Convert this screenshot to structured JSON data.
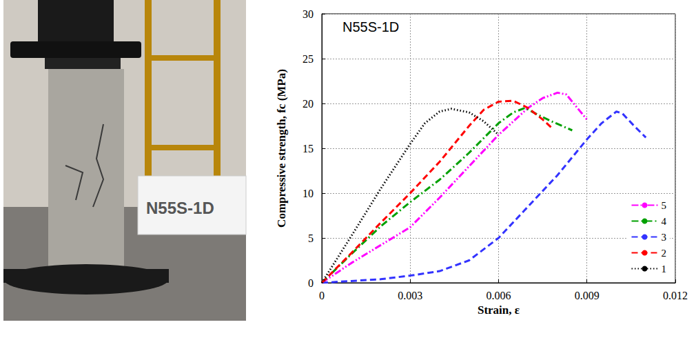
{
  "photo": {
    "label": "N55S-1D"
  },
  "chart_data": {
    "type": "line",
    "title": "N55S-1D",
    "x_label": "Strain, ε",
    "y_label": "Compressive strength, fc (MPa)",
    "xlim": [
      0,
      0.012
    ],
    "xticks": [
      0,
      0.003,
      0.006,
      0.009,
      0.012
    ],
    "ylim": [
      0,
      30
    ],
    "yticks": [
      0,
      5,
      10,
      15,
      20,
      25,
      30
    ],
    "grid": true,
    "legend": "lower right",
    "series": [
      {
        "name": "5",
        "color": "#ff00ff",
        "line_style": "dashdotdot",
        "x": [
          0,
          0.001,
          0.002,
          0.003,
          0.004,
          0.005,
          0.006,
          0.007,
          0.0075,
          0.008,
          0.0083,
          0.0086,
          0.009
        ],
        "values": [
          0,
          2.2,
          4.2,
          6.2,
          9.5,
          13.0,
          16.5,
          19.5,
          20.6,
          21.2,
          21.0,
          19.8,
          18.2
        ]
      },
      {
        "name": "4",
        "color": "#00a000",
        "line_style": "dashdot",
        "x": [
          0,
          0.001,
          0.002,
          0.003,
          0.004,
          0.005,
          0.006,
          0.0065,
          0.0069,
          0.0073,
          0.0078,
          0.0085
        ],
        "values": [
          0,
          3.2,
          6.3,
          9.0,
          11.5,
          14.5,
          17.8,
          19.0,
          19.5,
          18.8,
          18.0,
          17.0
        ]
      },
      {
        "name": "3",
        "color": "#3333ff",
        "line_style": "dashed",
        "x": [
          0,
          0.001,
          0.002,
          0.003,
          0.004,
          0.005,
          0.006,
          0.007,
          0.008,
          0.009,
          0.0095,
          0.01,
          0.0102,
          0.0106,
          0.011
        ],
        "values": [
          0,
          0.2,
          0.4,
          0.8,
          1.3,
          2.5,
          5.0,
          8.5,
          12.0,
          16.0,
          17.8,
          19.1,
          18.9,
          17.5,
          16.2
        ]
      },
      {
        "name": "2",
        "color": "#ff0000",
        "line_style": "dashed",
        "x": [
          0,
          0.001,
          0.002,
          0.003,
          0.004,
          0.005,
          0.0055,
          0.006,
          0.0065,
          0.007,
          0.0075,
          0.0078
        ],
        "values": [
          0,
          3.3,
          6.7,
          10.0,
          13.5,
          17.5,
          19.3,
          20.2,
          20.3,
          19.5,
          18.2,
          17.3
        ]
      },
      {
        "name": "1",
        "color": "#000000",
        "line_style": "dotted",
        "x": [
          0,
          0.001,
          0.002,
          0.003,
          0.0035,
          0.004,
          0.0044,
          0.005,
          0.0055,
          0.006
        ],
        "values": [
          0,
          5.2,
          10.5,
          15.5,
          17.8,
          19.1,
          19.4,
          19.0,
          18.0,
          16.5
        ]
      }
    ]
  }
}
